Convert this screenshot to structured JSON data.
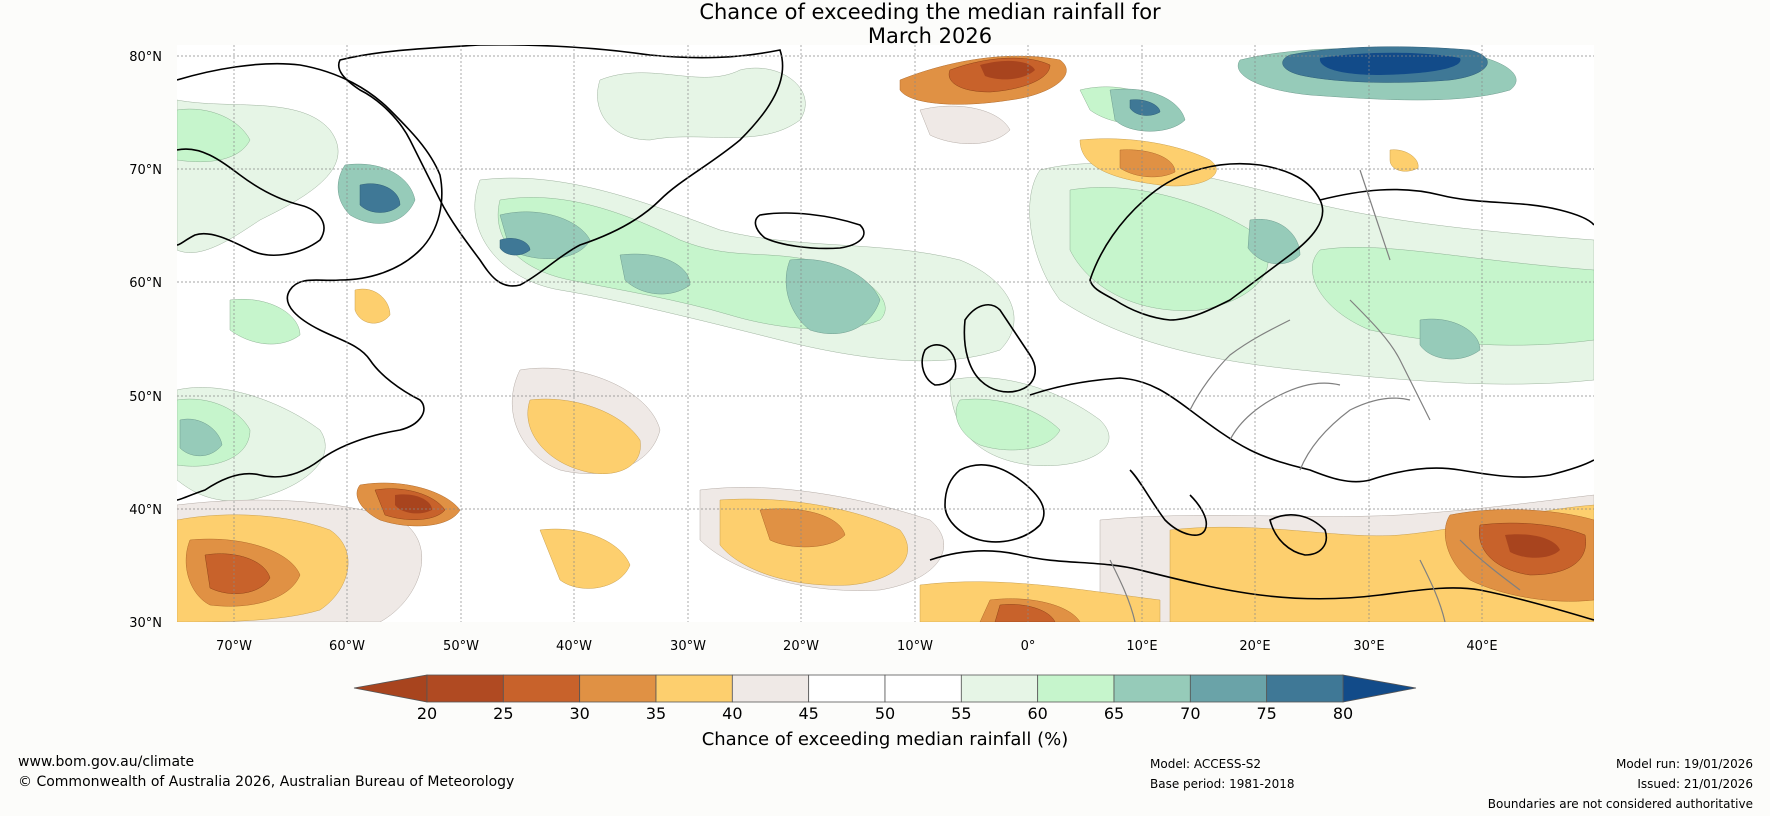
{
  "title": {
    "line1": "Chance of exceeding the median rainfall for",
    "line2": "March 2026"
  },
  "map": {
    "lat_labels": [
      "80°N",
      "70°N",
      "60°N",
      "50°N",
      "40°N",
      "30°N"
    ],
    "lon_labels": [
      "70°W",
      "60°W",
      "50°W",
      "40°W",
      "30°W",
      "20°W",
      "10°W",
      "0°",
      "10°E",
      "20°E",
      "30°E",
      "40°E"
    ],
    "colors": {
      "ocean_bg": "#ffffff",
      "grid": "#888888",
      "coast": "#000000",
      "border": "#808080"
    }
  },
  "colorbar": {
    "label": "Chance of exceeding median rainfall (%)",
    "ticks": [
      "20",
      "25",
      "30",
      "35",
      "40",
      "45",
      "50",
      "55",
      "60",
      "65",
      "70",
      "75",
      "80"
    ],
    "colors": [
      "#a8441e",
      "#b04a22",
      "#c8622b",
      "#e09144",
      "#fdcf6e",
      "#efe9e6",
      "#ffffff",
      "#ffffff",
      "#e6f5e6",
      "#c6f5cc",
      "#96cbb9",
      "#6aa3a8",
      "#3f7896",
      "#124b89"
    ]
  },
  "footer": {
    "url": "www.bom.gov.au/climate",
    "copyright": "© Commonwealth of Australia 2026, Australian Bureau of Meteorology",
    "model": "Model: ACCESS-S2",
    "base_period": "Base period: 1981-2018",
    "model_run": "Model run: 19/01/2026",
    "issued": "Issued: 21/01/2026",
    "disclaimer": "Boundaries are not considered authoritative"
  }
}
